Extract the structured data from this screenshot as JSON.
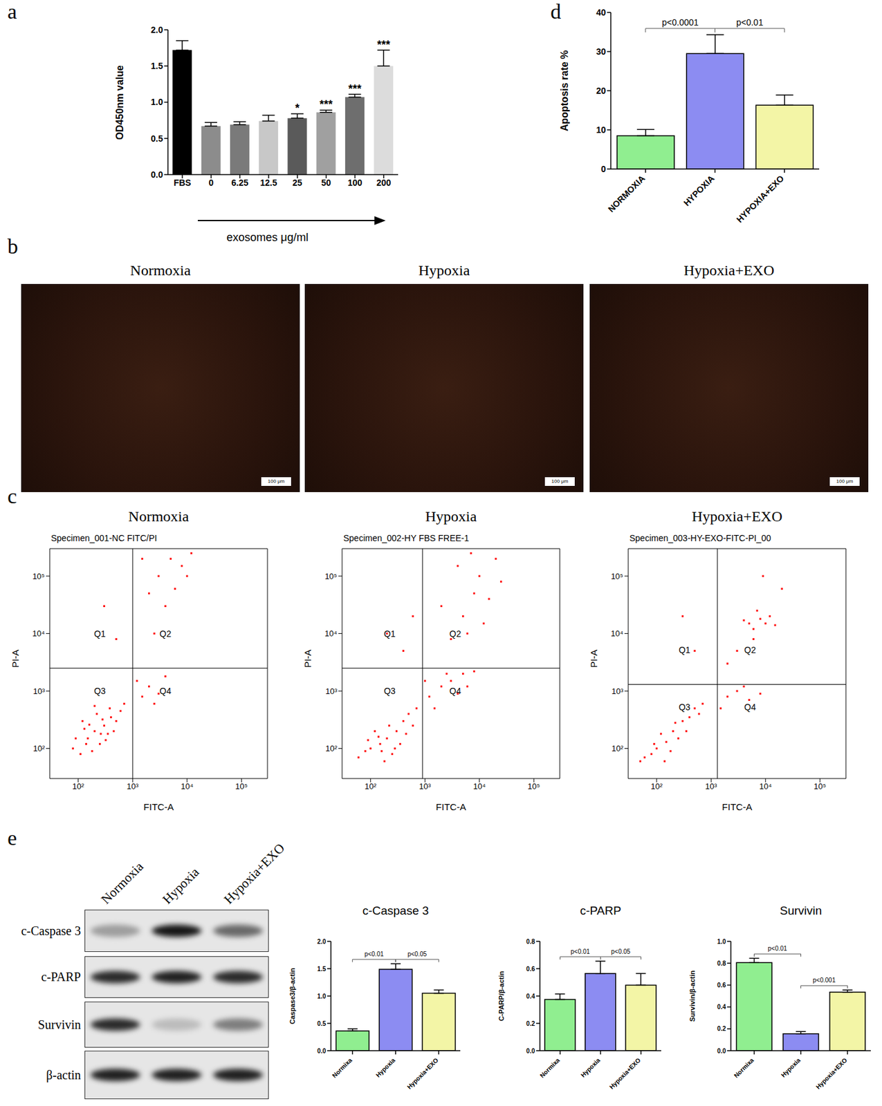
{
  "chart_data": [
    {
      "panel": "a",
      "type": "bar",
      "categories": [
        "FBS",
        "0",
        "6.25",
        "12.5",
        "25",
        "50",
        "100",
        "200"
      ],
      "values": [
        1.72,
        0.67,
        0.69,
        0.74,
        0.78,
        0.86,
        1.07,
        1.5
      ],
      "errors": [
        0.13,
        0.05,
        0.04,
        0.08,
        0.06,
        0.03,
        0.04,
        0.22
      ],
      "colors": [
        "#000000",
        "#8c8c8c",
        "#7a7a7a",
        "#c8c8c8",
        "#5a5a5a",
        "#a0a0a0",
        "#6e6e6e",
        "#dcdcdc"
      ],
      "significance": [
        null,
        null,
        null,
        null,
        "*",
        "***",
        "***",
        "***"
      ],
      "y_label": "OD450nm value",
      "x_label": "exosomes μg/ml",
      "ylim": [
        0,
        2
      ],
      "yticks": [
        {
          "value": 0,
          "label": "0.0"
        },
        0.5,
        {
          "value": 1,
          "label": "1.0"
        },
        1.5,
        {
          "value": 2,
          "label": "2.0"
        }
      ]
    },
    {
      "panel": "d",
      "type": "bar",
      "categories": [
        "NORMOXIA",
        "HYPOXIA",
        "HYPOXIA+EXO"
      ],
      "values": [
        8.5,
        29.5,
        16.3
      ],
      "errors": [
        1.6,
        4.8,
        2.6
      ],
      "colors": [
        "#90ee90",
        "#8c8cf2",
        "#f3f5a6"
      ],
      "y_label": "Apoptosis rate %",
      "ylim": [
        0,
        40
      ],
      "yticks": [
        0,
        10,
        20,
        30,
        40
      ],
      "comparisons": [
        {
          "from": "NORMOXIA",
          "to": "HYPOXIA",
          "label": "p<0.0001"
        },
        {
          "from": "HYPOXIA",
          "to": "HYPOXIA+EXO",
          "label": "p<0.01"
        }
      ]
    },
    {
      "panel": "b",
      "type": "image",
      "titles": [
        "Normoxia",
        "Hypoxia",
        "Hypoxia+EXO"
      ],
      "scale_bar": "100 μm"
    },
    {
      "panel": "c",
      "type": "scatter",
      "x_label": "FITC-A",
      "y_label": "PI-A",
      "log": true,
      "color": "#ff0000",
      "xlim": [
        30,
        300000
      ],
      "ylim": [
        30,
        300000
      ],
      "xticks": [
        {
          "value": 100,
          "label": "10²"
        },
        {
          "value": 1000,
          "label": "10³"
        },
        {
          "value": 10000,
          "label": "10⁴"
        },
        {
          "value": 100000,
          "label": "10⁵"
        }
      ],
      "yticks": [
        {
          "value": 100,
          "label": "10²"
        },
        {
          "value": 1000,
          "label": "10³"
        },
        {
          "value": 10000,
          "label": "10⁴"
        },
        {
          "value": 100000,
          "label": "10⁵"
        }
      ],
      "quadrant_labels": [
        "Q1",
        "Q2",
        "Q3",
        "Q4"
      ],
      "plots": [
        {
          "title": "Normoxia",
          "specimen": "Specimen_001-NC FITC/PI",
          "gate": [
            1000,
            2500
          ],
          "points": [
            [
              200,
              200
            ],
            [
              150,
              150
            ],
            [
              300,
              250
            ],
            [
              250,
              120
            ],
            [
              120,
              300
            ],
            [
              400,
              350
            ],
            [
              180,
              90
            ],
            [
              90,
              150
            ],
            [
              350,
              180
            ],
            [
              220,
              400
            ],
            [
              500,
              300
            ],
            [
              130,
              220
            ],
            [
              280,
              320
            ],
            [
              160,
              260
            ],
            [
              600,
              450
            ],
            [
              80,
              100
            ],
            [
              320,
              140
            ],
            [
              200,
              550
            ],
            [
              450,
              200
            ],
            [
              110,
              80
            ],
            [
              700,
              600
            ],
            [
              260,
              180
            ],
            [
              380,
              500
            ],
            [
              140,
              120
            ],
            [
              1500,
              800
            ],
            [
              2000,
              1200
            ],
            [
              3000,
              900
            ],
            [
              1200,
              1500
            ],
            [
              4000,
              1800
            ],
            [
              2500,
              600
            ],
            [
              3000,
              100000
            ],
            [
              5000,
              200000
            ],
            [
              2000,
              50000
            ],
            [
              8000,
              150000
            ],
            [
              4000,
              30000
            ],
            [
              1500,
              200000
            ],
            [
              10000,
              100000
            ],
            [
              6000,
              60000
            ],
            [
              2500,
              10000
            ],
            [
              12000,
              250000
            ],
            [
              500,
              8000
            ],
            [
              300,
              30000
            ]
          ]
        },
        {
          "title": "Hypoxia",
          "specimen": "Specimen_002-HY FBS FREE-1",
          "gate": [
            900,
            2500
          ],
          "points": [
            [
              150,
              120
            ],
            [
              100,
              100
            ],
            [
              200,
              150
            ],
            [
              300,
              200
            ],
            [
              80,
              90
            ],
            [
              250,
              80
            ],
            [
              120,
              200
            ],
            [
              400,
              300
            ],
            [
              180,
              60
            ],
            [
              350,
              120
            ],
            [
              60,
              70
            ],
            [
              500,
              400
            ],
            [
              220,
              250
            ],
            [
              140,
              160
            ],
            [
              700,
              500
            ],
            [
              90,
              140
            ],
            [
              280,
              100
            ],
            [
              600,
              250
            ],
            [
              160,
              90
            ],
            [
              450,
              180
            ],
            [
              1200,
              800
            ],
            [
              2000,
              1200
            ],
            [
              3000,
              1500
            ],
            [
              5000,
              2000
            ],
            [
              1500,
              500
            ],
            [
              4000,
              900
            ],
            [
              8000,
              2200
            ],
            [
              2500,
              2000
            ],
            [
              1000,
              1500
            ],
            [
              6000,
              1200
            ],
            [
              3000,
              8000
            ],
            [
              5000,
              20000
            ],
            [
              8000,
              50000
            ],
            [
              10000,
              100000
            ],
            [
              4000,
              150000
            ],
            [
              15000,
              40000
            ],
            [
              20000,
              200000
            ],
            [
              6000,
              10000
            ],
            [
              2000,
              30000
            ],
            [
              12000,
              15000
            ],
            [
              25000,
              80000
            ],
            [
              7000,
              250000
            ],
            [
              400,
              5000
            ],
            [
              600,
              20000
            ],
            [
              200,
              10000
            ]
          ]
        },
        {
          "title": "Hypoxia+EXO",
          "specimen": "Specimen_003-HY-EXO-FITC-PI_00",
          "gate": [
            1300,
            1300
          ],
          "points": [
            [
              100,
              100
            ],
            [
              80,
              80
            ],
            [
              150,
              130
            ],
            [
              200,
              200
            ],
            [
              60,
              70
            ],
            [
              250,
              150
            ],
            [
              120,
              180
            ],
            [
              300,
              300
            ],
            [
              180,
              90
            ],
            [
              400,
              350
            ],
            [
              50,
              60
            ],
            [
              90,
              120
            ],
            [
              350,
              200
            ],
            [
              500,
              500
            ],
            [
              140,
              60
            ],
            [
              220,
              280
            ],
            [
              700,
              600
            ],
            [
              600,
              400
            ],
            [
              2000,
              800
            ],
            [
              3000,
              1000
            ],
            [
              5000,
              700
            ],
            [
              1500,
              500
            ],
            [
              4000,
              1200
            ],
            [
              8000,
              900
            ],
            [
              5000,
              15000
            ],
            [
              8000,
              18000
            ],
            [
              10000,
              15000
            ],
            [
              6000,
              12000
            ],
            [
              12000,
              20000
            ],
            [
              4000,
              17000
            ],
            [
              15000,
              14000
            ],
            [
              7000,
              25000
            ],
            [
              3000,
              5000
            ],
            [
              20000,
              60000
            ],
            [
              9000,
              100000
            ],
            [
              2000,
              3000
            ],
            [
              6000,
              8000
            ],
            [
              500,
              5000
            ],
            [
              300,
              20000
            ]
          ]
        }
      ]
    },
    {
      "panel": "e",
      "type": "blot",
      "lanes": [
        "Normoxia",
        "Hypoxia",
        "Hypoxia+EXO"
      ],
      "rows": [
        {
          "name": "c-Caspase 3",
          "band_intensity": [
            0.35,
            1,
            0.6
          ]
        },
        {
          "name": "c-PARP",
          "band_intensity": [
            0.9,
            0.95,
            0.9
          ]
        },
        {
          "name": "Survivin",
          "band_intensity": [
            0.9,
            0.2,
            0.5
          ]
        },
        {
          "name": "β-actin",
          "band_intensity": [
            0.95,
            0.95,
            0.95
          ]
        }
      ]
    },
    {
      "type": "bar",
      "title": "c-Caspase 3",
      "categories": [
        "Normixa",
        "Hypoxia",
        "Hypoxia+EXO"
      ],
      "values": [
        0.36,
        1.49,
        1.05
      ],
      "errors": [
        0.04,
        0.1,
        0.06
      ],
      "colors": [
        "#90ee90",
        "#8c8cf2",
        "#f3f5a6"
      ],
      "y_label": "Caspase3/β-actin",
      "ylim": [
        0,
        2
      ],
      "yticks": [
        {
          "value": 0,
          "label": "0.0"
        },
        0.5,
        {
          "value": 1,
          "label": "1.0"
        },
        1.5,
        {
          "value": 2,
          "label": "2.0"
        }
      ],
      "comparisons": [
        {
          "from": "Normixa",
          "to": "Hypoxia",
          "label": "p<0.01"
        },
        {
          "from": "Hypoxia",
          "to": "Hypoxia+EXO",
          "label": "p<0.05"
        }
      ]
    },
    {
      "type": "bar",
      "title": "c-PARP",
      "categories": [
        "Normixa",
        "Hypoxia",
        "Hypoxia+EXO"
      ],
      "values": [
        0.375,
        0.565,
        0.48
      ],
      "errors": [
        0.04,
        0.09,
        0.085
      ],
      "colors": [
        "#90ee90",
        "#8c8cf2",
        "#f3f5a6"
      ],
      "y_label": "C-PARP/β-actin",
      "ylim": [
        0,
        0.8
      ],
      "yticks": [
        {
          "value": 0,
          "label": "0.0"
        },
        0.2,
        0.4,
        0.6,
        0.8
      ],
      "comparisons": [
        {
          "from": "Normixa",
          "to": "Hypoxia",
          "label": "p<0.01"
        },
        {
          "from": "Hypoxia",
          "to": "Hypoxia+EXO",
          "label": "p<0.05"
        }
      ]
    },
    {
      "type": "bar",
      "title": "Survivin",
      "categories": [
        "Normixa",
        "Hypoxia",
        "Hypoxia+EXO"
      ],
      "values": [
        0.805,
        0.155,
        0.535
      ],
      "errors": [
        0.04,
        0.02,
        0.02
      ],
      "colors": [
        "#90ee90",
        "#8c8cf2",
        "#f3f5a6"
      ],
      "y_label": "Survivin/β-actin",
      "ylim": [
        0,
        1
      ],
      "yticks": [
        {
          "value": 0,
          "label": "0.0"
        },
        0.2,
        0.4,
        0.6,
        0.8,
        {
          "value": 1,
          "label": "1.0"
        }
      ],
      "comparisons": [
        {
          "from": "Normixa",
          "to": "Hypoxia",
          "label": "p<0.01"
        },
        {
          "from": "Hypoxia",
          "to": "Hypoxia+EXO",
          "label": "p<0.001"
        }
      ]
    }
  ]
}
